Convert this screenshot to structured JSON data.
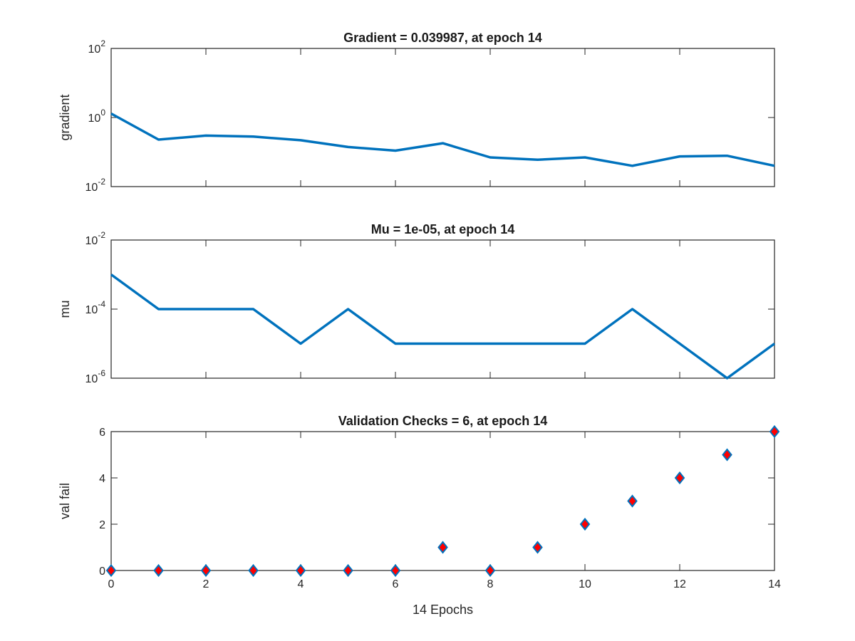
{
  "chart_data": [
    {
      "type": "line",
      "title": "Gradient = 0.039987, at epoch 14",
      "ylabel": "gradient",
      "xlabel": "",
      "yscale": "log",
      "xlim": [
        0,
        14
      ],
      "ylim_exponents": [
        -2,
        2
      ],
      "yticks": [
        {
          "base": "10",
          "exp": "-2"
        },
        {
          "base": "10",
          "exp": "0"
        },
        {
          "base": "10",
          "exp": "2"
        }
      ],
      "xticks": [],
      "color": "#0072bd",
      "x": [
        0,
        1,
        2,
        3,
        4,
        5,
        6,
        7,
        8,
        9,
        10,
        11,
        12,
        13,
        14
      ],
      "values": [
        1.3,
        0.23,
        0.3,
        0.28,
        0.22,
        0.14,
        0.11,
        0.18,
        0.07,
        0.06,
        0.07,
        0.04,
        0.075,
        0.078,
        0.039987
      ]
    },
    {
      "type": "line",
      "title": "Mu = 1e-05, at epoch 14",
      "ylabel": "mu",
      "xlabel": "",
      "yscale": "log",
      "xlim": [
        0,
        14
      ],
      "ylim_exponents": [
        -6,
        -2
      ],
      "yticks": [
        {
          "base": "10",
          "exp": "-6"
        },
        {
          "base": "10",
          "exp": "-4"
        },
        {
          "base": "10",
          "exp": "-2"
        }
      ],
      "xticks": [],
      "color": "#0072bd",
      "x": [
        0,
        1,
        2,
        3,
        4,
        5,
        6,
        7,
        8,
        9,
        10,
        11,
        12,
        13,
        14
      ],
      "values": [
        0.001,
        0.0001,
        0.0001,
        0.0001,
        1e-05,
        0.0001,
        1e-05,
        1e-05,
        1e-05,
        1e-05,
        1e-05,
        0.0001,
        1e-05,
        1e-06,
        1e-05
      ]
    },
    {
      "type": "scatter",
      "title": "Validation Checks = 6, at epoch 14",
      "ylabel": "val fail",
      "xlabel": "14 Epochs",
      "yscale": "linear",
      "xlim": [
        0,
        14
      ],
      "ylim": [
        0,
        6
      ],
      "yticks": [
        "0",
        "2",
        "4",
        "6"
      ],
      "xticks": [
        "0",
        "2",
        "4",
        "6",
        "8",
        "10",
        "12",
        "14"
      ],
      "marker_fill": "#ff0000",
      "marker_edge": "#0072bd",
      "x": [
        0,
        1,
        2,
        3,
        4,
        5,
        6,
        7,
        8,
        9,
        10,
        11,
        12,
        13,
        14
      ],
      "values": [
        0,
        0,
        0,
        0,
        0,
        0,
        0,
        1,
        0,
        1,
        2,
        3,
        4,
        5,
        6
      ]
    }
  ]
}
